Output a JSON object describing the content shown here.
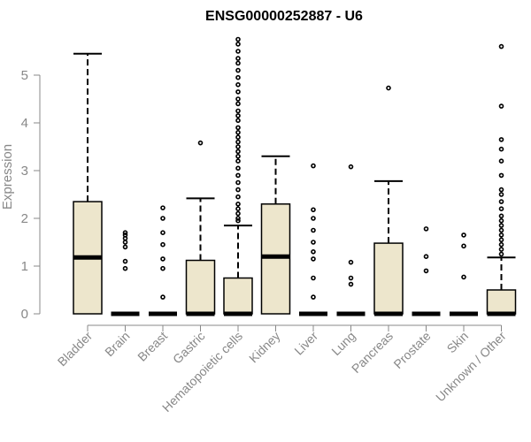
{
  "chart_data": {
    "type": "boxplot",
    "title": "ENSG00000252887 - U6",
    "ylabel": "Expression",
    "xlabel": "",
    "ylim": [
      0,
      5.8
    ],
    "yticks": [
      "0",
      "1",
      "2",
      "3",
      "4",
      "5"
    ],
    "grid": false,
    "colors": {
      "box_fill": "#ede6cc",
      "stroke": "#000000",
      "axis": "#888888",
      "text": "#888888"
    },
    "categories": [
      "Bladder",
      "Brain",
      "Breast",
      "Gastric",
      "Hematopoietic cells",
      "Kidney",
      "Liver",
      "Lung",
      "Pancreas",
      "Prostate",
      "Skin",
      "Unknown / Other"
    ],
    "boxes": [
      {
        "q1": 0,
        "median": 1.18,
        "q3": 2.35,
        "whisker_low": 0,
        "whisker_high": 5.45,
        "outliers": []
      },
      {
        "q1": 0,
        "median": 0,
        "q3": 0,
        "whisker_low": 0,
        "whisker_high": 0,
        "outliers": [
          0.95,
          1.1,
          1.4,
          1.5,
          1.58,
          1.65,
          1.7
        ]
      },
      {
        "q1": 0,
        "median": 0,
        "q3": 0,
        "whisker_low": 0,
        "whisker_high": 0,
        "outliers": [
          0.35,
          0.95,
          1.15,
          1.45,
          1.7,
          2.0,
          2.22
        ]
      },
      {
        "q1": 0,
        "median": 0,
        "q3": 1.12,
        "whisker_low": 0,
        "whisker_high": 2.42,
        "outliers": [
          3.58
        ]
      },
      {
        "q1": 0,
        "median": 0,
        "q3": 0.75,
        "whisker_low": 0,
        "whisker_high": 1.85,
        "outliers": [
          1.95,
          2.0,
          2.1,
          2.2,
          2.3,
          2.45,
          2.6,
          2.75,
          2.9,
          3.05,
          3.2,
          3.3,
          3.4,
          3.5,
          3.6,
          3.7,
          3.8,
          3.9,
          4.05,
          4.15,
          4.25,
          4.4,
          4.5,
          4.65,
          4.8,
          4.95,
          5.1,
          5.25,
          5.35,
          5.5,
          5.65,
          5.75
        ]
      },
      {
        "q1": 0,
        "median": 1.2,
        "q3": 2.3,
        "whisker_low": 0,
        "whisker_high": 3.3,
        "outliers": []
      },
      {
        "q1": 0,
        "median": 0,
        "q3": 0,
        "whisker_low": 0,
        "whisker_high": 0,
        "outliers": [
          0.35,
          0.75,
          1.15,
          1.3,
          1.5,
          1.75,
          2.0,
          2.18,
          3.1
        ]
      },
      {
        "q1": 0,
        "median": 0,
        "q3": 0,
        "whisker_low": 0,
        "whisker_high": 0,
        "outliers": [
          0.62,
          0.75,
          1.08,
          3.08
        ]
      },
      {
        "q1": 0,
        "median": 0,
        "q3": 1.48,
        "whisker_low": 0,
        "whisker_high": 2.78,
        "outliers": [
          4.73
        ]
      },
      {
        "q1": 0,
        "median": 0,
        "q3": 0,
        "whisker_low": 0,
        "whisker_high": 0,
        "outliers": [
          0.9,
          1.2,
          1.78
        ]
      },
      {
        "q1": 0,
        "median": 0,
        "q3": 0,
        "whisker_low": 0,
        "whisker_high": 0,
        "outliers": [
          0.77,
          1.42,
          1.65
        ]
      },
      {
        "q1": 0,
        "median": 0,
        "q3": 0.5,
        "whisker_low": 0,
        "whisker_high": 1.18,
        "outliers": [
          1.25,
          1.35,
          1.45,
          1.55,
          1.65,
          1.75,
          1.85,
          1.95,
          2.05,
          2.2,
          2.35,
          2.5,
          2.6,
          2.9,
          3.2,
          3.45,
          3.65,
          4.35,
          5.6
        ]
      }
    ]
  }
}
